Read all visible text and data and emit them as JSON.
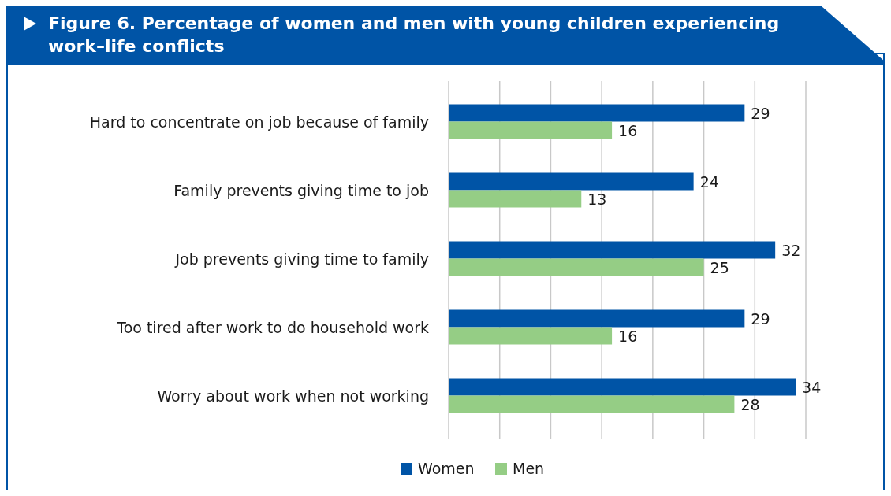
{
  "chart_data": {
    "type": "bar",
    "orientation": "horizontal",
    "title": "Figure 6. Percentage of women and men with young children experiencing work–life conflicts",
    "categories": [
      "Hard to concentrate on job because of family",
      "Family prevents giving time to job",
      "Job prevents giving time to family",
      "Too tired after work to do household work",
      "Worry about work when not working"
    ],
    "series": [
      {
        "name": "Women",
        "color": "#0054a6",
        "values": [
          29,
          24,
          32,
          29,
          34
        ]
      },
      {
        "name": "Men",
        "color": "#95cd85",
        "values": [
          16,
          13,
          25,
          16,
          28
        ]
      }
    ],
    "xlim": [
      0,
      35
    ],
    "xticks": [
      {
        "value": 0,
        "label": null
      },
      {
        "value": 5,
        "label": null
      },
      {
        "value": 10,
        "label": null
      },
      {
        "value": 15,
        "label": null
      },
      {
        "value": 20,
        "label": null
      },
      {
        "value": 25,
        "label": null
      },
      {
        "value": 30,
        "label": null
      },
      {
        "value": 35,
        "label": null
      }
    ],
    "tick_labels": "y",
    "grid": "x",
    "data_labels": true,
    "legend": "bottom"
  }
}
